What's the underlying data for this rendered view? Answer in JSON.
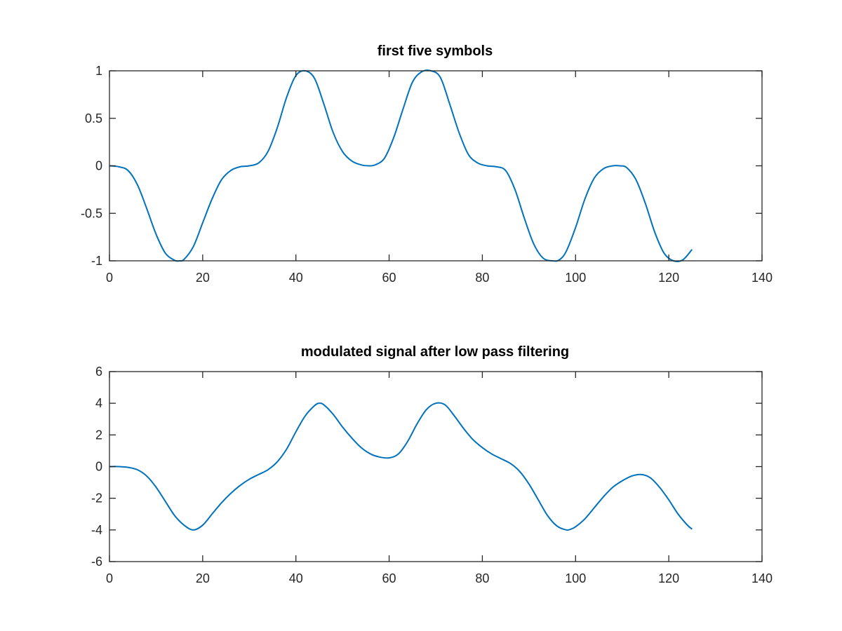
{
  "chart_data": [
    {
      "type": "line",
      "title": "first five symbols",
      "xlabel": "",
      "ylabel": "",
      "xlim": [
        0,
        140
      ],
      "ylim": [
        -1,
        1
      ],
      "xticks": [
        0,
        20,
        40,
        60,
        80,
        100,
        120,
        140
      ],
      "yticks": [
        -1,
        -0.5,
        0,
        0.5,
        1
      ],
      "xtick_labels": [
        "0",
        "20",
        "40",
        "60",
        "80",
        "100",
        "120",
        "140"
      ],
      "ytick_labels": [
        "-1",
        "-0.5",
        "0",
        "0.5",
        "1"
      ],
      "grid": false,
      "color": "#0072BD",
      "series": [
        {
          "x": [
            0,
            2,
            4,
            6,
            8,
            10,
            12,
            14,
            15,
            16,
            18,
            20,
            22,
            24,
            26,
            28,
            30,
            32,
            34,
            36,
            38,
            40,
            42,
            44,
            46,
            48,
            50,
            52,
            54,
            55.5,
            57,
            59,
            61,
            63,
            65,
            67,
            69,
            71,
            73,
            75,
            77,
            79,
            81,
            83,
            85,
            87,
            89,
            91,
            93,
            95,
            96.5,
            98,
            100,
            102,
            104,
            106,
            108,
            109.5,
            111,
            113,
            115,
            117,
            119,
            121,
            123,
            125
          ],
          "y": [
            0,
            -0.01,
            -0.05,
            -0.2,
            -0.45,
            -0.72,
            -0.92,
            -0.995,
            -1,
            -0.985,
            -0.85,
            -0.6,
            -0.35,
            -0.15,
            -0.05,
            -0.01,
            0,
            0.03,
            0.15,
            0.4,
            0.72,
            0.95,
            1,
            0.92,
            0.65,
            0.35,
            0.15,
            0.05,
            0.01,
            0,
            0.01,
            0.08,
            0.3,
            0.6,
            0.88,
            0.99,
            1,
            0.93,
            0.65,
            0.35,
            0.12,
            0.03,
            0,
            -0.01,
            -0.05,
            -0.25,
            -0.55,
            -0.82,
            -0.97,
            -1,
            -0.99,
            -0.9,
            -0.65,
            -0.35,
            -0.13,
            -0.03,
            0,
            0,
            -0.02,
            -0.15,
            -0.4,
            -0.7,
            -0.92,
            -1,
            -0.99,
            -0.88
          ]
        }
      ]
    },
    {
      "type": "line",
      "title": "modulated signal after low pass filtering",
      "xlabel": "",
      "ylabel": "",
      "xlim": [
        0,
        140
      ],
      "ylim": [
        -6,
        6
      ],
      "xticks": [
        0,
        20,
        40,
        60,
        80,
        100,
        120,
        140
      ],
      "yticks": [
        -6,
        -4,
        -2,
        0,
        2,
        4,
        6
      ],
      "xtick_labels": [
        "0",
        "20",
        "40",
        "60",
        "80",
        "100",
        "120",
        "140"
      ],
      "ytick_labels": [
        "-6",
        "-4",
        "-2",
        "0",
        "2",
        "4",
        "6"
      ],
      "grid": false,
      "color": "#0072BD",
      "series": [
        {
          "x": [
            0,
            2,
            4,
            6,
            8,
            10,
            12,
            14,
            16,
            18,
            20,
            22,
            24,
            26,
            28,
            30,
            32,
            34,
            36,
            38,
            40,
            42,
            44,
            45,
            46,
            48,
            50,
            52,
            54,
            56,
            58,
            60,
            62,
            64,
            66,
            68,
            70,
            72,
            74,
            76,
            78,
            80,
            82,
            84,
            86,
            88,
            90,
            92,
            94,
            96,
            98,
            99,
            100,
            102,
            104,
            106,
            108,
            110,
            112,
            114,
            116,
            118,
            120,
            122,
            124,
            125
          ],
          "y": [
            0,
            0,
            -0.05,
            -0.2,
            -0.6,
            -1.3,
            -2.2,
            -3.1,
            -3.7,
            -4,
            -3.7,
            -3,
            -2.3,
            -1.7,
            -1.2,
            -0.8,
            -0.5,
            -0.2,
            0.3,
            1.1,
            2.2,
            3.2,
            3.85,
            4,
            3.9,
            3.3,
            2.5,
            1.8,
            1.2,
            0.8,
            0.6,
            0.55,
            0.8,
            1.6,
            2.7,
            3.6,
            4,
            3.9,
            3.2,
            2.4,
            1.7,
            1.2,
            0.8,
            0.5,
            0.2,
            -0.3,
            -1.1,
            -2.1,
            -3.1,
            -3.75,
            -4,
            -3.95,
            -3.8,
            -3.3,
            -2.6,
            -1.9,
            -1.3,
            -0.9,
            -0.6,
            -0.5,
            -0.7,
            -1.3,
            -2.1,
            -3,
            -3.7,
            -3.95
          ]
        }
      ]
    }
  ]
}
